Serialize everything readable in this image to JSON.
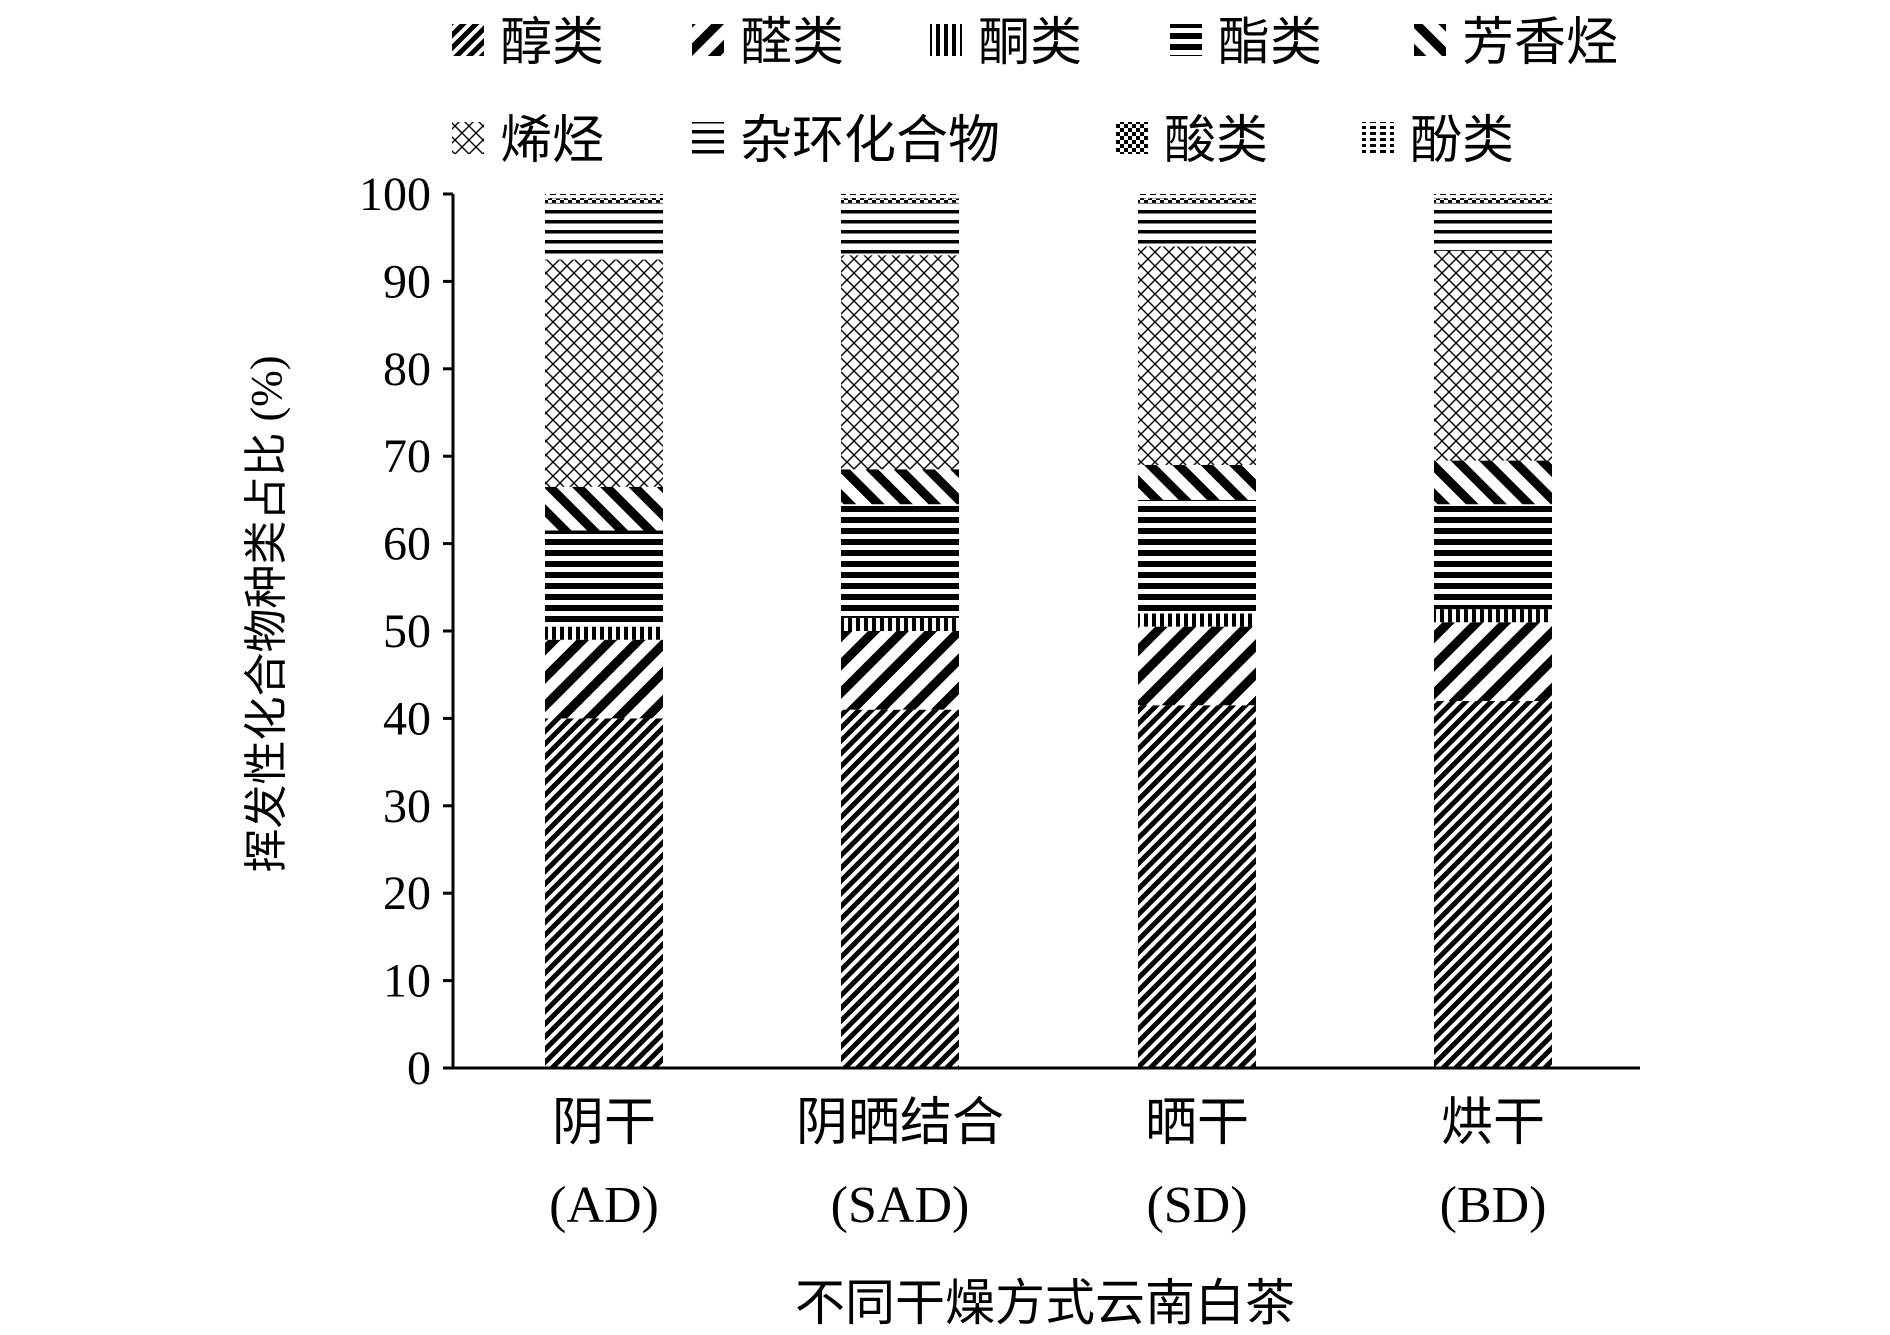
{
  "chart_data": {
    "type": "bar",
    "stacked": true,
    "xlabel": "不同干燥方式云南白茶",
    "ylabel": "挥发性化合物种类占比 (%)",
    "ylim": [
      0,
      100
    ],
    "yticks": [
      "0",
      "10",
      "20",
      "30",
      "40",
      "50",
      "60",
      "70",
      "80",
      "90",
      "100"
    ],
    "grid": false,
    "legend_position": "top",
    "categories": [
      {
        "line1": "阴干",
        "line2": "(AD)"
      },
      {
        "line1": "阴晒结合",
        "line2": "(SAD)"
      },
      {
        "line1": "晒干",
        "line2": "(SD)"
      },
      {
        "line1": "烘干",
        "line2": "(BD)"
      }
    ],
    "series": [
      {
        "name": "醇类",
        "pattern": "diag-fine",
        "values": [
          40.0,
          41.0,
          41.5,
          42.0
        ]
      },
      {
        "name": "醛类",
        "pattern": "diag-coarse",
        "values": [
          9.0,
          9.0,
          9.0,
          9.0
        ]
      },
      {
        "name": "酮类",
        "pattern": "vertical",
        "values": [
          1.5,
          1.5,
          1.5,
          1.5
        ]
      },
      {
        "name": "酯类",
        "pattern": "horizontal-bold",
        "values": [
          11.0,
          13.0,
          13.0,
          12.0
        ]
      },
      {
        "name": "芳香烃",
        "pattern": "diag-back",
        "values": [
          5.0,
          4.0,
          4.0,
          5.0
        ]
      },
      {
        "name": "烯烃",
        "pattern": "diamond",
        "values": [
          26.0,
          24.5,
          25.0,
          24.0
        ]
      },
      {
        "name": "杂环化合物",
        "pattern": "horizontal",
        "values": [
          6.5,
          6.0,
          5.0,
          5.5
        ]
      },
      {
        "name": "酸类",
        "pattern": "checker",
        "values": [
          0.5,
          0.5,
          0.5,
          0.5
        ]
      },
      {
        "name": "酚类",
        "pattern": "dash",
        "values": [
          0.5,
          0.5,
          0.5,
          0.5
        ]
      }
    ]
  }
}
